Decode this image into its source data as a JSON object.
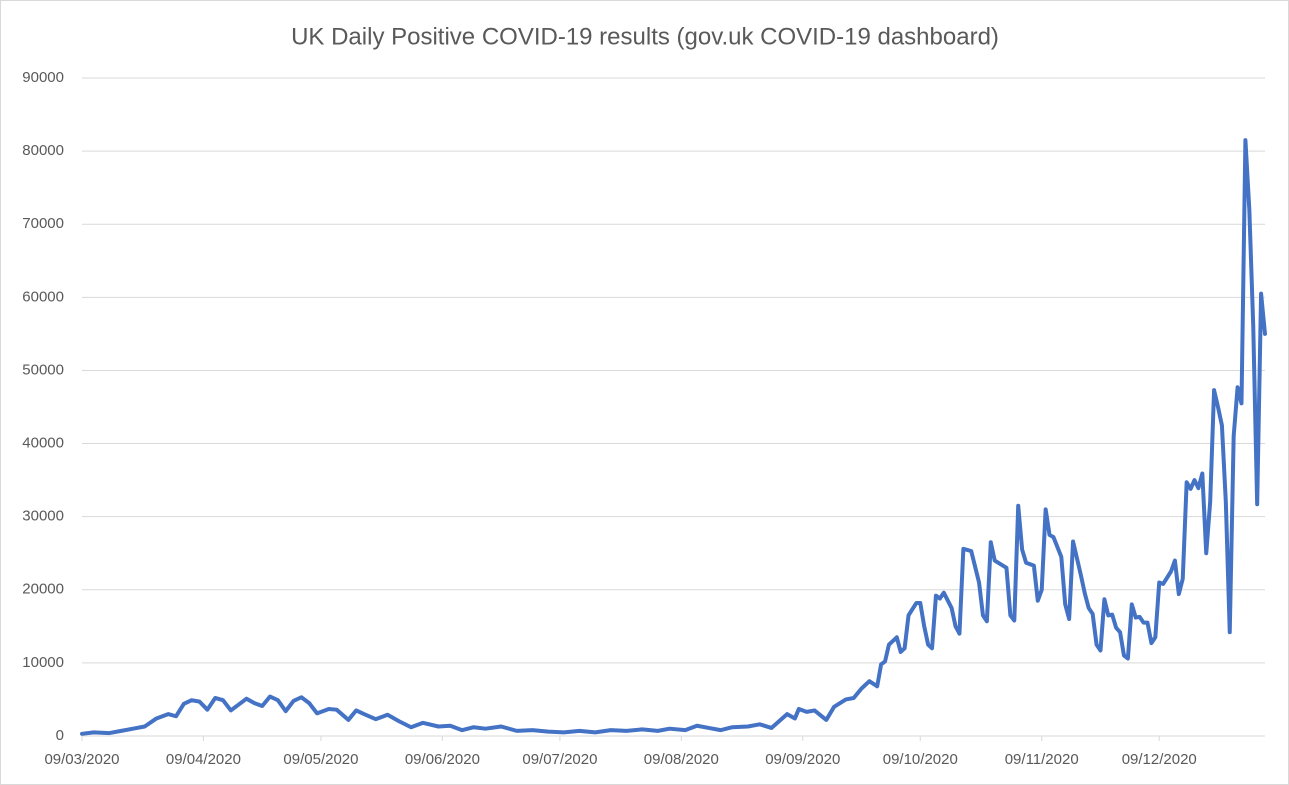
{
  "chart_data": {
    "type": "line",
    "title": "UK Daily Positive COVID-19 results (gov.uk COVID-19 dashboard)",
    "color": "#4472c4",
    "grid": true,
    "xlim": [
      "2020-03-09",
      "2021-01-05"
    ],
    "xticks": [
      {
        "value": "2020-03-09",
        "label": "09/03/2020"
      },
      {
        "value": "2020-04-09",
        "label": "09/04/2020"
      },
      {
        "value": "2020-05-09",
        "label": "09/05/2020"
      },
      {
        "value": "2020-06-09",
        "label": "09/06/2020"
      },
      {
        "value": "2020-07-09",
        "label": "09/07/2020"
      },
      {
        "value": "2020-08-09",
        "label": "09/08/2020"
      },
      {
        "value": "2020-09-09",
        "label": "09/09/2020"
      },
      {
        "value": "2020-10-09",
        "label": "09/10/2020"
      },
      {
        "value": "2020-11-09",
        "label": "09/11/2020"
      },
      {
        "value": "2020-12-09",
        "label": "09/12/2020"
      }
    ],
    "ylim": [
      0,
      90000
    ],
    "yticks": [
      0,
      10000,
      20000,
      30000,
      40000,
      50000,
      60000,
      70000,
      80000,
      90000
    ],
    "x": [
      "2020-03-09",
      "2020-03-12",
      "2020-03-16",
      "2020-03-19",
      "2020-03-22",
      "2020-03-25",
      "2020-03-28",
      "2020-03-31",
      "2020-04-02",
      "2020-04-04",
      "2020-04-06",
      "2020-04-08",
      "2020-04-10",
      "2020-04-12",
      "2020-04-14",
      "2020-04-16",
      "2020-04-18",
      "2020-04-20",
      "2020-04-22",
      "2020-04-24",
      "2020-04-26",
      "2020-04-28",
      "2020-04-30",
      "2020-05-02",
      "2020-05-04",
      "2020-05-06",
      "2020-05-08",
      "2020-05-11",
      "2020-05-13",
      "2020-05-16",
      "2020-05-18",
      "2020-05-20",
      "2020-05-23",
      "2020-05-26",
      "2020-05-29",
      "2020-06-01",
      "2020-06-04",
      "2020-06-08",
      "2020-06-11",
      "2020-06-14",
      "2020-06-17",
      "2020-06-20",
      "2020-06-24",
      "2020-06-28",
      "2020-07-02",
      "2020-07-06",
      "2020-07-10",
      "2020-07-14",
      "2020-07-18",
      "2020-07-22",
      "2020-07-26",
      "2020-07-30",
      "2020-08-03",
      "2020-08-06",
      "2020-08-10",
      "2020-08-13",
      "2020-08-16",
      "2020-08-19",
      "2020-08-22",
      "2020-08-26",
      "2020-08-29",
      "2020-09-01",
      "2020-09-05",
      "2020-09-07",
      "2020-09-08",
      "2020-09-10",
      "2020-09-12",
      "2020-09-15",
      "2020-09-17",
      "2020-09-20",
      "2020-09-22",
      "2020-09-24",
      "2020-09-26",
      "2020-09-28",
      "2020-09-29",
      "2020-09-30",
      "2020-10-01",
      "2020-10-03",
      "2020-10-04",
      "2020-10-05",
      "2020-10-06",
      "2020-10-08",
      "2020-10-09",
      "2020-10-10",
      "2020-10-11",
      "2020-10-12",
      "2020-10-13",
      "2020-10-14",
      "2020-10-15",
      "2020-10-17",
      "2020-10-18",
      "2020-10-19",
      "2020-10-20",
      "2020-10-22",
      "2020-10-24",
      "2020-10-25",
      "2020-10-26",
      "2020-10-27",
      "2020-10-28",
      "2020-10-31",
      "2020-11-01",
      "2020-11-02",
      "2020-11-03",
      "2020-11-04",
      "2020-11-05",
      "2020-11-07",
      "2020-11-08",
      "2020-11-09",
      "2020-11-10",
      "2020-11-11",
      "2020-11-12",
      "2020-11-14",
      "2020-11-15",
      "2020-11-16",
      "2020-11-17",
      "2020-11-19",
      "2020-11-20",
      "2020-11-21",
      "2020-11-22",
      "2020-11-23",
      "2020-11-24",
      "2020-11-25",
      "2020-11-26",
      "2020-11-27",
      "2020-11-28",
      "2020-11-29",
      "2020-11-30",
      "2020-12-01",
      "2020-12-02",
      "2020-12-03",
      "2020-12-04",
      "2020-12-05",
      "2020-12-06",
      "2020-12-07",
      "2020-12-08",
      "2020-12-09",
      "2020-12-10",
      "2020-12-12",
      "2020-12-13",
      "2020-12-14",
      "2020-12-15",
      "2020-12-16",
      "2020-12-17",
      "2020-12-18",
      "2020-12-19",
      "2020-12-20",
      "2020-12-21",
      "2020-12-22",
      "2020-12-23",
      "2020-12-24",
      "2020-12-25",
      "2020-12-26",
      "2020-12-27",
      "2020-12-28",
      "2020-12-29",
      "2020-12-30",
      "2020-12-31",
      "2021-01-01",
      "2021-01-02",
      "2021-01-03",
      "2021-01-04",
      "2021-01-05"
    ],
    "values": [
      300,
      500,
      400,
      700,
      1000,
      1300,
      2400,
      3000,
      2700,
      4400,
      4900,
      4700,
      3600,
      5200,
      4900,
      3500,
      4300,
      5100,
      4500,
      4100,
      5400,
      4900,
      3400,
      4800,
      5300,
      4500,
      3100,
      3700,
      3600,
      2200,
      3500,
      3000,
      2300,
      2900,
      2000,
      1200,
      1800,
      1300,
      1400,
      800,
      1200,
      1000,
      1300,
      700,
      800,
      600,
      500,
      700,
      500,
      800,
      700,
      900,
      700,
      1000,
      800,
      1400,
      1100,
      800,
      1200,
      1300,
      1600,
      1100,
      3000,
      2400,
      3700,
      3300,
      3500,
      2200,
      4000,
      5000,
      5200,
      6500,
      7500,
      6800,
      9800,
      10200,
      12500,
      13500,
      11500,
      12000,
      16500,
      18200,
      18200,
      15000,
      12500,
      12000,
      19200,
      18800,
      19600,
      17500,
      15000,
      14000,
      25600,
      25300,
      21000,
      16500,
      15700,
      26500,
      24000,
      23000,
      16500,
      15800,
      31500,
      25500,
      23700,
      23300,
      18500,
      20000,
      31000,
      27500,
      27200,
      24500,
      18000,
      16000,
      26600,
      22000,
      19500,
      17500,
      16700,
      12500,
      11700,
      18700,
      16500,
      16600,
      14800,
      14200,
      11000,
      10600,
      18000,
      16200,
      16300,
      15500,
      15500,
      12700,
      13500,
      21000,
      20800,
      22500,
      24000,
      19400,
      21500,
      34700,
      33800,
      35000,
      33900,
      35900,
      25000,
      32000,
      47300,
      45000,
      42500,
      32000,
      14200,
      41000,
      47700,
      45500,
      81500,
      72000,
      56000,
      31700,
      60500,
      55000
    ]
  }
}
